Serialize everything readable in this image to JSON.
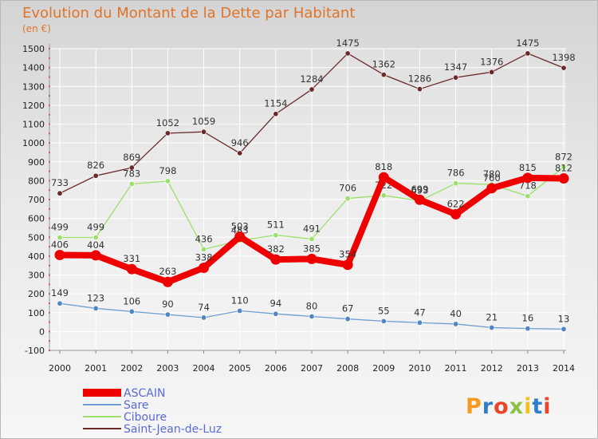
{
  "chart_data": {
    "type": "line",
    "title": "Evolution du Montant de la Dette par Habitant",
    "subtitle": "(en €)",
    "xlabel": "",
    "ylabel": "",
    "x": [
      "2000",
      "2001",
      "2002",
      "2003",
      "2004",
      "2005",
      "2006",
      "2007",
      "2008",
      "2009",
      "2010",
      "2011",
      "2012",
      "2013",
      "2014"
    ],
    "ylim": [
      -100,
      1500
    ],
    "yticks": [
      -100,
      0,
      100,
      200,
      300,
      400,
      500,
      600,
      700,
      800,
      900,
      1000,
      1100,
      1200,
      1300,
      1400,
      1500
    ],
    "grid": true,
    "legend_position": "bottom-left",
    "series": [
      {
        "name": "Saint-Jean-de-Luz",
        "color": "#6b2a2a",
        "values": [
          733,
          826,
          869,
          1052,
          1059,
          946,
          1154,
          1284,
          1475,
          1362,
          1286,
          1347,
          1376,
          1475,
          1398
        ]
      },
      {
        "name": "Ciboure",
        "color": "#9be06a",
        "values": [
          499,
          499,
          783,
          798,
          436,
          483,
          511,
          491,
          706,
          722,
          693,
          786,
          780,
          718,
          872
        ]
      },
      {
        "name": "Sare",
        "color": "#6e9fd2",
        "values": [
          149,
          123,
          106,
          90,
          74,
          110,
          94,
          80,
          67,
          55,
          47,
          40,
          21,
          16,
          13
        ]
      },
      {
        "name": "ASCAIN",
        "color": "#ee0000",
        "values": [
          406,
          404,
          331,
          263,
          338,
          503,
          382,
          385,
          354,
          818,
          699,
          622,
          760,
          815,
          812
        ]
      }
    ]
  },
  "legend": {
    "items": [
      {
        "label": "ASCAIN",
        "color": "#ee0000"
      },
      {
        "label": "Sare",
        "color": "#6e9fd2"
      },
      {
        "label": "Ciboure",
        "color": "#9be06a"
      },
      {
        "label": "Saint-Jean-de-Luz",
        "color": "#6b2a2a"
      }
    ]
  },
  "logo": {
    "text": "Proxiti"
  }
}
